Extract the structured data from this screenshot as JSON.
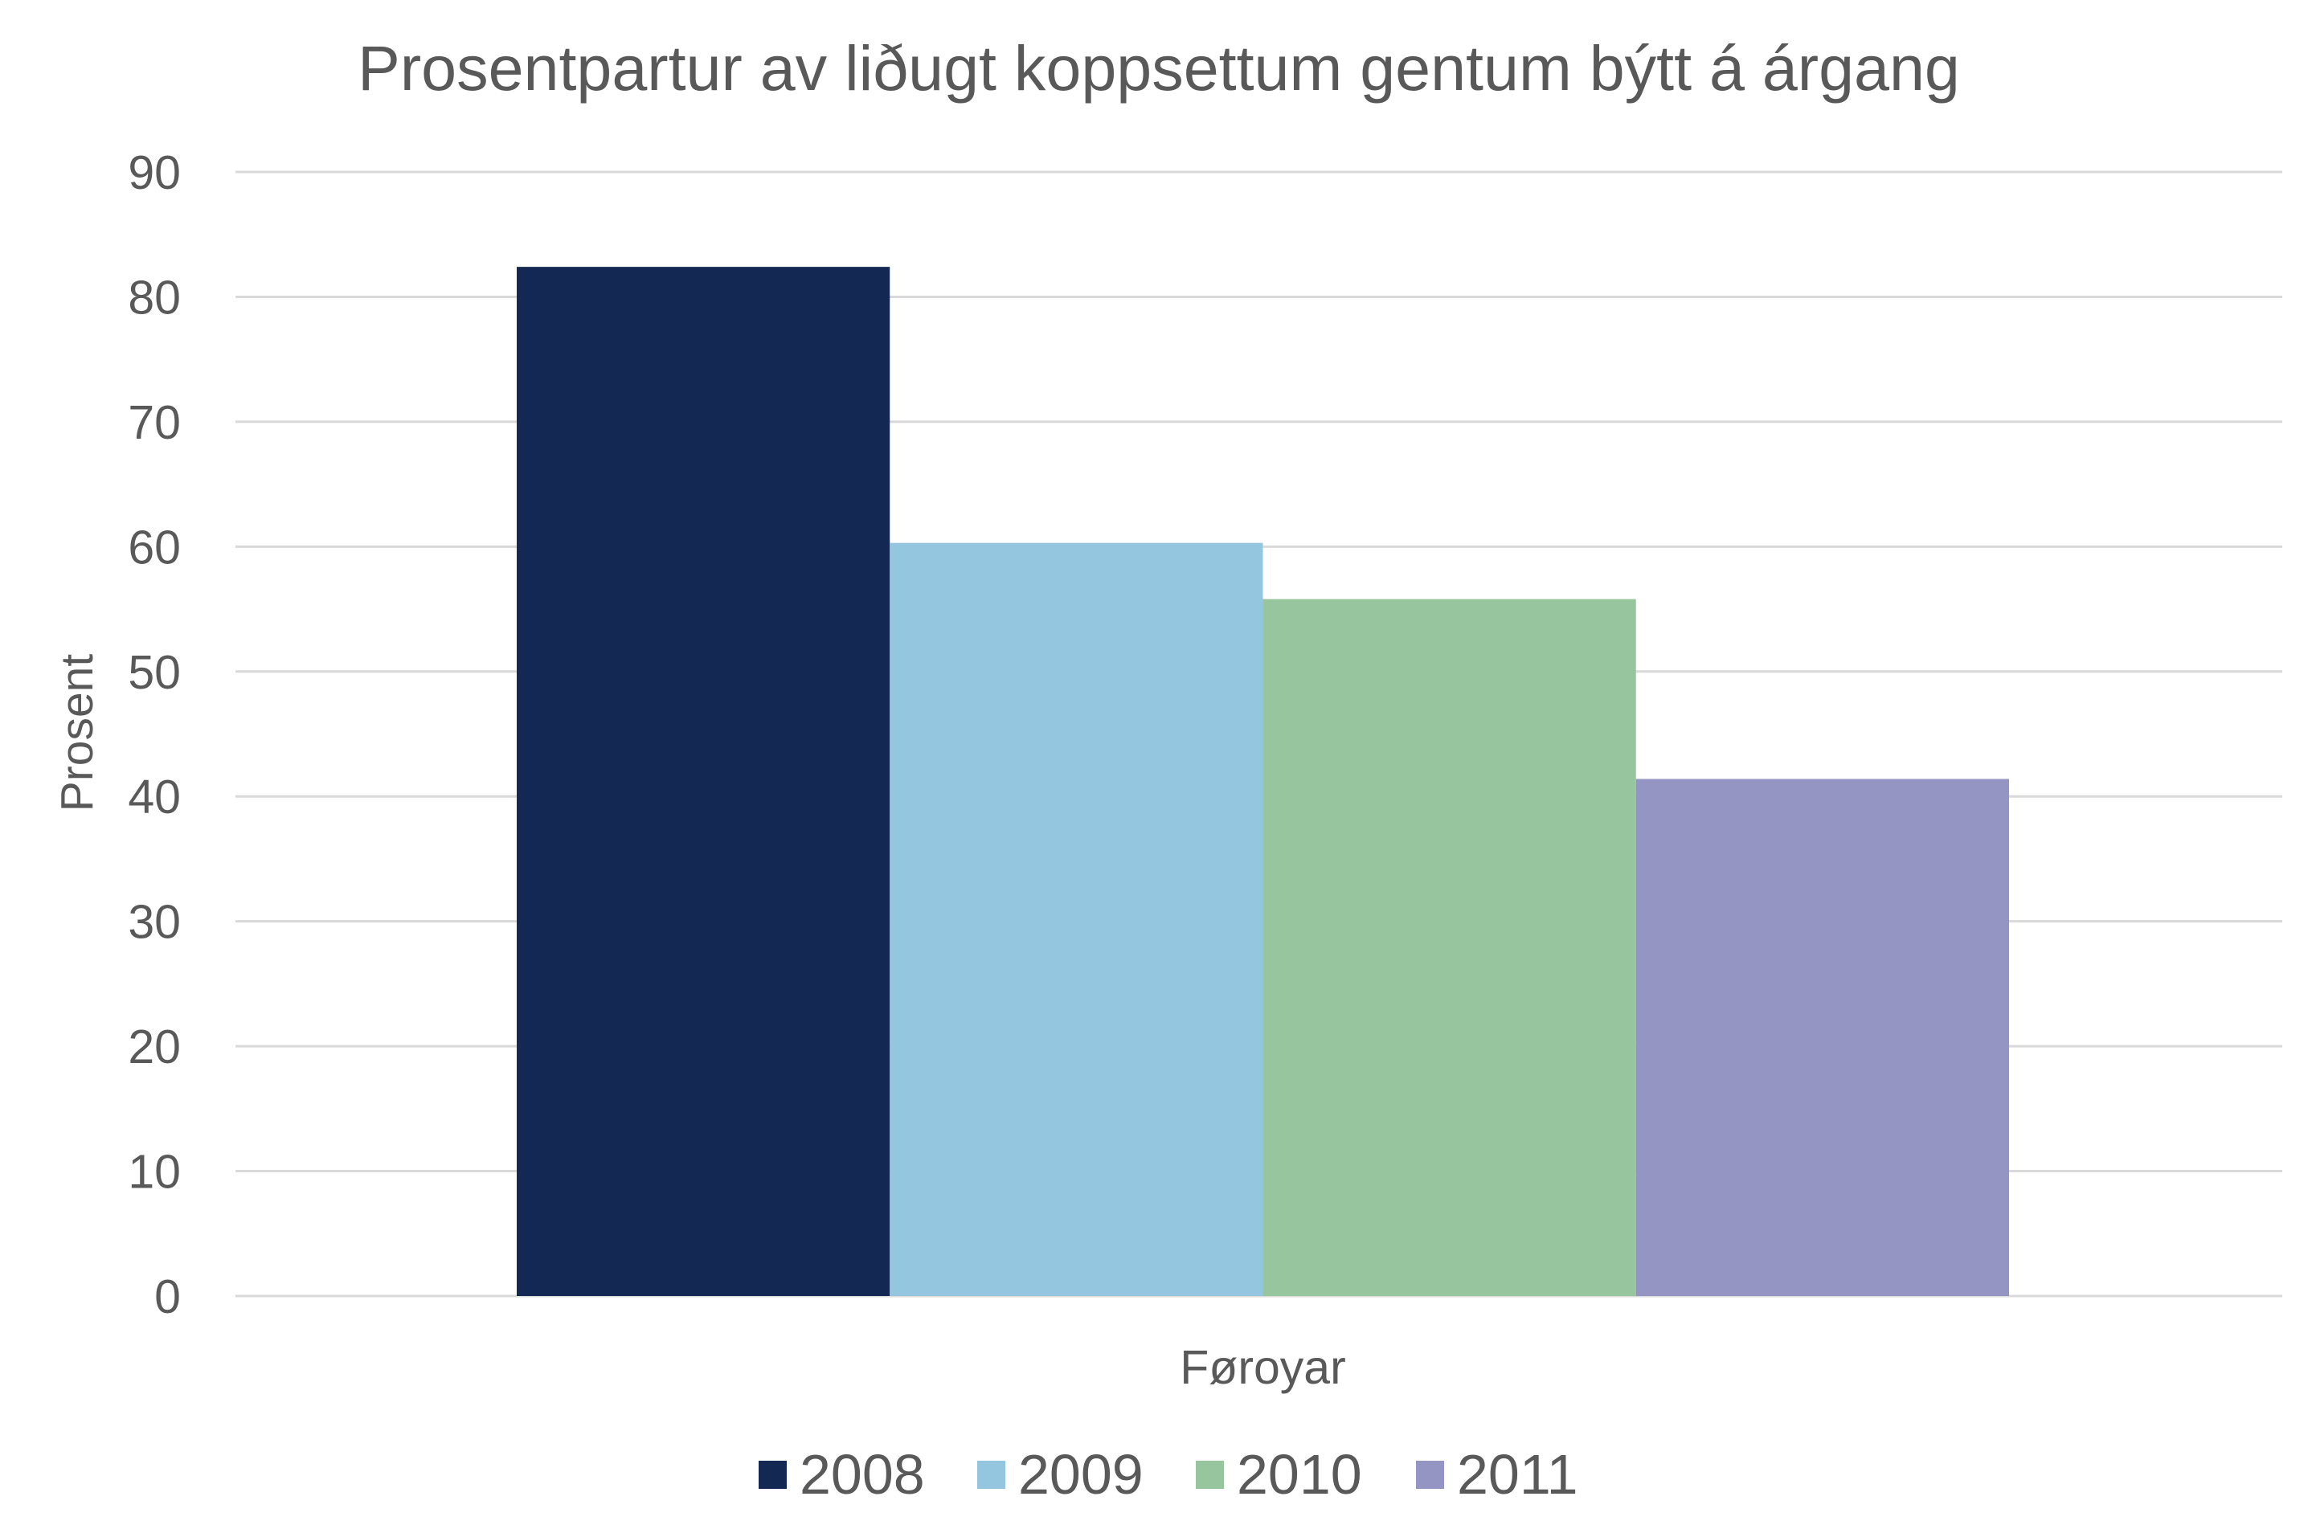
{
  "chart_data": {
    "type": "bar",
    "title": "Prosentpartur av liðugt koppsettum gentum býtt á árgang",
    "xlabel": "",
    "ylabel": "Prosent",
    "ylim": [
      0,
      90
    ],
    "yticks": [
      "0",
      "10",
      "20",
      "30",
      "40",
      "50",
      "60",
      "70",
      "80",
      "90"
    ],
    "grid": true,
    "legend_position": "bottom",
    "categories": [
      "Føroyar"
    ],
    "series": [
      {
        "name": "2008",
        "color": "#132953",
        "values": [
          82.4
        ]
      },
      {
        "name": "2009",
        "color": "#94c7df",
        "values": [
          60.3
        ]
      },
      {
        "name": "2010",
        "color": "#97c59d",
        "values": [
          55.8
        ]
      },
      {
        "name": "2011",
        "color": "#9495c3",
        "values": [
          41.4
        ]
      }
    ]
  }
}
